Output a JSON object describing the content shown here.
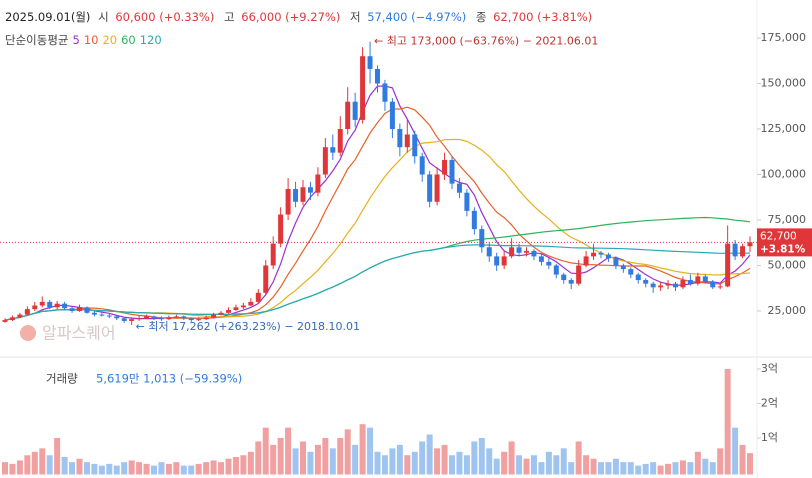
{
  "chart_data": {
    "type": "candlestick",
    "header": {
      "date": "2025.09.01(월)",
      "open_label": "시",
      "open": "60,600 (+0.33%)",
      "high_label": "고",
      "high": "66,000 (+9.27%)",
      "low_label": "저",
      "low": "57,400 (−4.97%)",
      "close_label": "종",
      "close": "62,700 (+3.81%)"
    },
    "ma": {
      "label": "단순이동평균",
      "periods": [
        5,
        10,
        20,
        60,
        120
      ],
      "colors": [
        "#9b30d0",
        "#e8602c",
        "#e8b020",
        "#2fb35a",
        "#2aa8b8"
      ]
    },
    "annotations": {
      "high": "← 최고 173,000 (−63.76%) − 2021.06.01",
      "low": "← 최저 17,262 (+263.23%) − 2018.10.01",
      "watermark": "알파스퀘어"
    },
    "price_tag": {
      "price": "62,700",
      "change": "+3.81%"
    },
    "up_color": "#e0363a",
    "down_color": "#2f7be0",
    "vol_up_color": "#f0a0a0",
    "vol_down_color": "#a0c4f0",
    "ylim": [
      800,
      195900
    ],
    "yticks": [
      {
        "value": 25000,
        "label": "25,000"
      },
      {
        "value": 50000,
        "label": "50,000"
      },
      {
        "value": 75000,
        "label": "75,000"
      },
      {
        "value": 100000,
        "label": "100,000"
      },
      {
        "value": 125000,
        "label": "125,000"
      },
      {
        "value": 150000,
        "label": "150,000"
      },
      {
        "value": 175000,
        "label": "175,000"
      }
    ],
    "candles": [
      [
        19000,
        21000,
        18500,
        20000
      ],
      [
        20000,
        22500,
        19500,
        21500
      ],
      [
        21500,
        24000,
        21000,
        23000
      ],
      [
        23000,
        27500,
        22500,
        26000
      ],
      [
        26000,
        30000,
        25000,
        28000
      ],
      [
        28000,
        33000,
        27000,
        30000
      ],
      [
        30000,
        31000,
        26000,
        27000
      ],
      [
        27000,
        30500,
        26000,
        29000
      ],
      [
        29000,
        30000,
        25500,
        26500
      ],
      [
        26500,
        27500,
        24000,
        25000
      ],
      [
        25000,
        28500,
        24500,
        27000
      ],
      [
        27000,
        27500,
        23500,
        24000
      ],
      [
        24000,
        25000,
        22000,
        23000
      ],
      [
        23000,
        24500,
        22000,
        22500
      ],
      [
        22500,
        23500,
        21000,
        22000
      ],
      [
        22000,
        23000,
        20000,
        21000
      ],
      [
        21000,
        21500,
        18500,
        19500
      ],
      [
        19500,
        21500,
        17262,
        20500
      ],
      [
        20500,
        22500,
        19500,
        21000
      ],
      [
        21000,
        23000,
        20500,
        22000
      ],
      [
        22000,
        22500,
        20000,
        21000
      ],
      [
        21000,
        22000,
        19500,
        20500
      ],
      [
        20500,
        22500,
        20000,
        21500
      ],
      [
        21500,
        23000,
        21000,
        22000
      ],
      [
        22000,
        22500,
        20000,
        21000
      ],
      [
        21000,
        21500,
        19000,
        20000
      ],
      [
        20000,
        21500,
        19500,
        20500
      ],
      [
        20500,
        22500,
        20000,
        21500
      ],
      [
        21500,
        24000,
        21000,
        23000
      ],
      [
        23000,
        25000,
        22500,
        24000
      ],
      [
        24000,
        27000,
        23500,
        25500
      ],
      [
        25500,
        28500,
        25000,
        27000
      ],
      [
        27000,
        29500,
        26000,
        28000
      ],
      [
        28000,
        32000,
        27500,
        30000
      ],
      [
        30000,
        37000,
        29000,
        35000
      ],
      [
        35000,
        53000,
        34000,
        50000
      ],
      [
        50000,
        66000,
        48000,
        62000
      ],
      [
        62000,
        82000,
        60000,
        78000
      ],
      [
        78000,
        98000,
        75000,
        92000
      ],
      [
        92000,
        96000,
        82000,
        85000
      ],
      [
        85000,
        97000,
        83000,
        93000
      ],
      [
        93000,
        96000,
        86000,
        90000
      ],
      [
        90000,
        104000,
        88000,
        100000
      ],
      [
        100000,
        120000,
        98000,
        115000
      ],
      [
        115000,
        122000,
        108000,
        112000
      ],
      [
        112000,
        132000,
        110000,
        125000
      ],
      [
        125000,
        148000,
        122000,
        140000
      ],
      [
        140000,
        145000,
        126000,
        130000
      ],
      [
        130000,
        170000,
        128000,
        165000
      ],
      [
        165000,
        173000,
        150000,
        158000
      ],
      [
        158000,
        160000,
        145000,
        150000
      ],
      [
        150000,
        152000,
        135000,
        140000
      ],
      [
        140000,
        142000,
        120000,
        125000
      ],
      [
        125000,
        128000,
        110000,
        115000
      ],
      [
        115000,
        130000,
        112000,
        122000
      ],
      [
        122000,
        124000,
        106000,
        110000
      ],
      [
        110000,
        112000,
        96000,
        100000
      ],
      [
        100000,
        102000,
        82000,
        85000
      ],
      [
        85000,
        104000,
        83000,
        100000
      ],
      [
        100000,
        112000,
        97000,
        108000
      ],
      [
        108000,
        110000,
        92000,
        95000
      ],
      [
        95000,
        98000,
        87000,
        90000
      ],
      [
        90000,
        92000,
        77000,
        80000
      ],
      [
        80000,
        82000,
        67000,
        70000
      ],
      [
        70000,
        72000,
        57000,
        60000
      ],
      [
        60000,
        63000,
        52000,
        55000
      ],
      [
        55000,
        57000,
        47000,
        50000
      ],
      [
        50000,
        58000,
        48000,
        55000
      ],
      [
        55000,
        65000,
        54000,
        60000
      ],
      [
        60000,
        62000,
        55000,
        57000
      ],
      [
        57000,
        60000,
        55000,
        58000
      ],
      [
        58000,
        59000,
        53000,
        55000
      ],
      [
        55000,
        56000,
        50000,
        52000
      ],
      [
        52000,
        54000,
        48000,
        50000
      ],
      [
        50000,
        51000,
        43000,
        45000
      ],
      [
        45000,
        46000,
        40000,
        42000
      ],
      [
        42000,
        43000,
        37000,
        40000
      ],
      [
        40000,
        53000,
        39000,
        50000
      ],
      [
        50000,
        58000,
        49000,
        55000
      ],
      [
        55000,
        62000,
        53000,
        57000
      ],
      [
        57000,
        58000,
        54000,
        56000
      ],
      [
        56000,
        57000,
        52000,
        54000
      ],
      [
        54000,
        55000,
        48000,
        50000
      ],
      [
        50000,
        51000,
        46000,
        48000
      ],
      [
        48000,
        49000,
        43000,
        45000
      ],
      [
        45000,
        46000,
        40000,
        42000
      ],
      [
        42000,
        43000,
        38000,
        40000
      ],
      [
        40000,
        41000,
        35000,
        38000
      ],
      [
        38000,
        41000,
        36000,
        39000
      ],
      [
        39000,
        42000,
        37000,
        40000
      ],
      [
        40000,
        41000,
        36000,
        38000
      ],
      [
        38000,
        44000,
        37000,
        42000
      ],
      [
        42000,
        45000,
        39000,
        40000
      ],
      [
        40000,
        46000,
        39000,
        44000
      ],
      [
        44000,
        45000,
        40000,
        41000
      ],
      [
        41000,
        42000,
        37000,
        38000
      ],
      [
        38000,
        40000,
        37000,
        38500
      ],
      [
        38500,
        72000,
        38000,
        62000
      ],
      [
        62000,
        64000,
        53000,
        55000
      ],
      [
        55000,
        62000,
        54000,
        60600
      ],
      [
        60600,
        66000,
        57400,
        62700
      ]
    ],
    "volume": {
      "label": "거래량",
      "value_text": "5,619만 1,013 (−59.39%)",
      "ylim": [
        0,
        3.26
      ],
      "yticks": [
        {
          "value": 1,
          "label": "1억"
        },
        {
          "value": 2,
          "label": "2억"
        },
        {
          "value": 3,
          "label": "3억"
        }
      ],
      "values": [
        0.3,
        0.25,
        0.35,
        0.5,
        0.6,
        0.7,
        0.5,
        1.0,
        0.45,
        0.3,
        0.4,
        0.3,
        0.25,
        0.2,
        0.25,
        0.2,
        0.3,
        0.35,
        0.3,
        0.25,
        0.2,
        0.3,
        0.25,
        0.3,
        0.2,
        0.2,
        0.25,
        0.3,
        0.35,
        0.3,
        0.4,
        0.45,
        0.5,
        0.6,
        0.9,
        1.3,
        0.8,
        1.0,
        1.3,
        0.7,
        0.9,
        0.6,
        0.8,
        1.0,
        0.7,
        1.0,
        1.25,
        0.8,
        1.4,
        1.3,
        0.6,
        0.5,
        0.7,
        0.8,
        0.5,
        0.6,
        0.9,
        1.1,
        0.7,
        0.8,
        0.5,
        0.6,
        0.5,
        0.9,
        1.0,
        0.7,
        0.4,
        0.6,
        0.9,
        0.5,
        0.4,
        0.5,
        0.3,
        0.6,
        0.5,
        0.7,
        0.3,
        0.9,
        0.5,
        0.4,
        0.3,
        0.3,
        0.4,
        0.3,
        0.3,
        0.2,
        0.25,
        0.3,
        0.2,
        0.25,
        0.3,
        0.35,
        0.3,
        0.6,
        0.4,
        0.3,
        0.7,
        3.0,
        1.3,
        0.8,
        0.5619
      ]
    }
  }
}
